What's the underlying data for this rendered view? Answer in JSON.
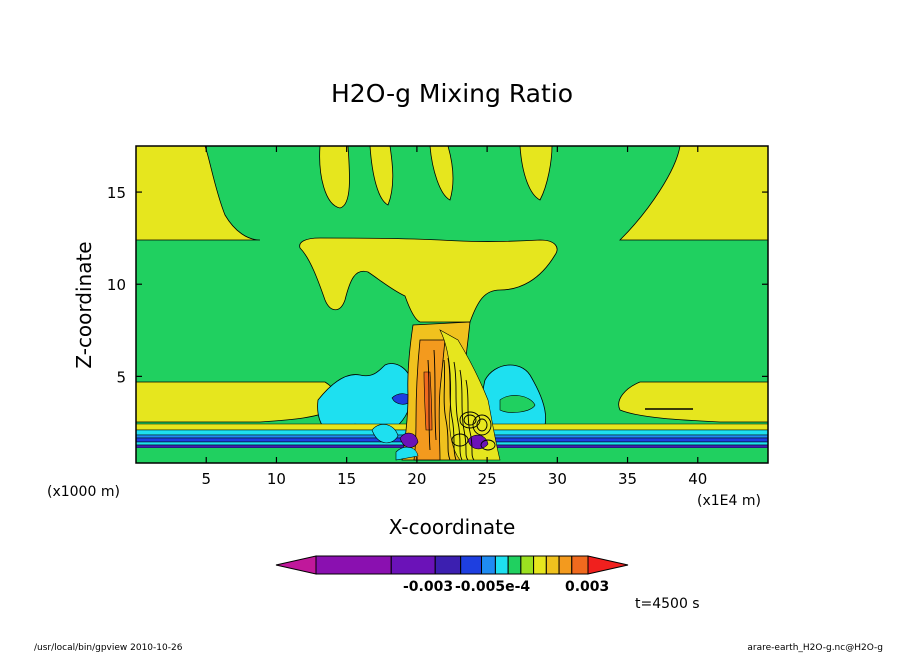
{
  "chart_data": {
    "type": "contour",
    "title": "H2O-g Mixing Ratio",
    "xlabel": "X-coordinate",
    "ylabel": "Z-coordinate",
    "x_unit_note": "(x1E4 m)",
    "y_unit_note": "(x1000 m)",
    "xlim": [
      0,
      45
    ],
    "ylim": [
      0.3,
      17.5
    ],
    "x_ticks": [
      {
        "value": 5,
        "label": "5"
      },
      {
        "value": 10,
        "label": "10"
      },
      {
        "value": 15,
        "label": "15"
      },
      {
        "value": 20,
        "label": "20"
      },
      {
        "value": 25,
        "label": "25"
      },
      {
        "value": 30,
        "label": "30"
      },
      {
        "value": 35,
        "label": "35"
      },
      {
        "value": 40,
        "label": "40"
      }
    ],
    "y_ticks": [
      {
        "value": 5,
        "label": "5"
      },
      {
        "value": 10,
        "label": "10"
      },
      {
        "value": 15,
        "label": "15"
      }
    ],
    "colorbar": {
      "colors": [
        "#c0189b",
        "#8a10b0",
        "#6b12b8",
        "#3c1fb0",
        "#1e3fe0",
        "#1f8cf2",
        "#1ee0f0",
        "#20d060",
        "#9be020",
        "#e6e61e",
        "#f0c21e",
        "#f39a1e",
        "#f06a1e",
        "#f0201e"
      ],
      "labels": [
        "-0.003",
        "-0.005e-4",
        "0.003"
      ]
    },
    "time_label": "t=4500 s"
  },
  "footer": {
    "left": "/usr/local/bin/gpview  2010-10-26",
    "right": "arare-earth_H2O-g.nc@H2O-g"
  }
}
